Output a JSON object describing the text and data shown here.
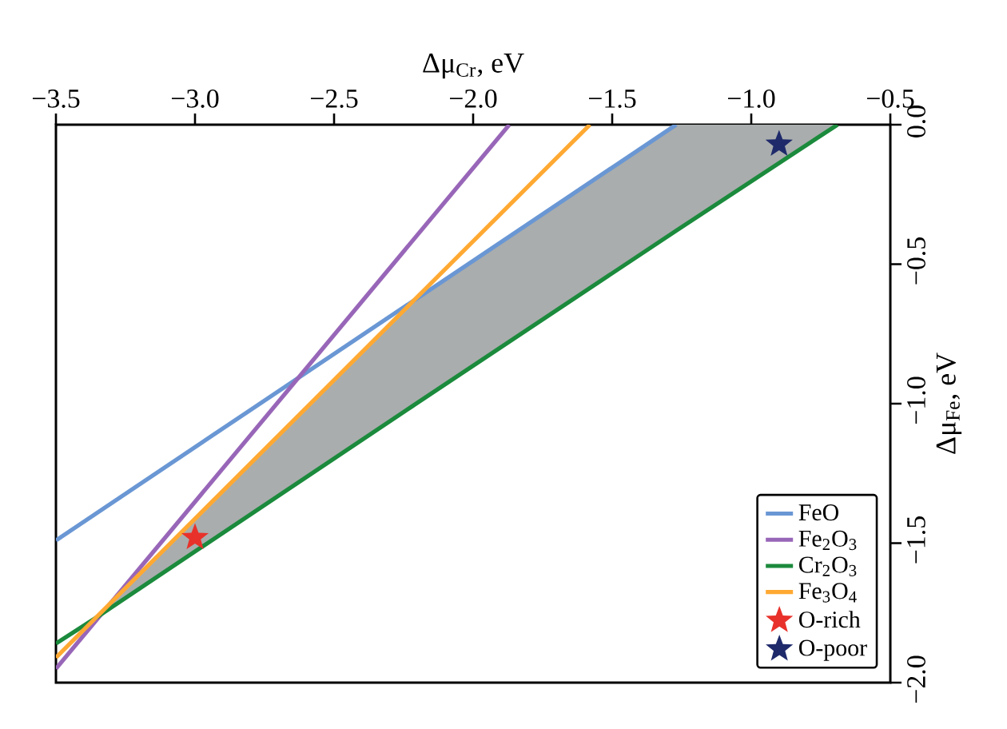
{
  "chart_data": {
    "type": "line",
    "xlabel": "Δμ$_{Cr}$, eV",
    "ylabel": "Δμ$_{Fe}$, eV",
    "xlim": [
      -3.5,
      -0.5
    ],
    "ylim": [
      -2.0,
      0.0
    ],
    "xticks": [
      {
        "value": -3.5,
        "label": "−3.5"
      },
      {
        "value": -3.0,
        "label": "−3.0"
      },
      {
        "value": -2.5,
        "label": "−2.5"
      },
      {
        "value": -2.0,
        "label": "−2.0"
      },
      {
        "value": -1.5,
        "label": "−1.5"
      },
      {
        "value": -1.0,
        "label": "−1.0"
      },
      {
        "value": -0.5,
        "label": "−0.5"
      }
    ],
    "yticks": [
      {
        "value": -2.0,
        "label": "−2.0"
      },
      {
        "value": -1.5,
        "label": "−1.5"
      },
      {
        "value": -1.0,
        "label": "−1.0"
      },
      {
        "value": -0.5,
        "label": "−0.5"
      },
      {
        "value": 0.0,
        "label": "0.0"
      }
    ],
    "grid": false,
    "legend": "bottom right",
    "series": [
      {
        "name": "FeO",
        "color": "#6a97d4",
        "x": [
          -3.5,
          -1.27
        ],
        "values": [
          -1.49,
          0.0
        ]
      },
      {
        "name": "Fe$_{2}$O$_{3}$",
        "color": "#9866b8",
        "x": [
          -3.5,
          -1.87
        ],
        "values": [
          -1.95,
          0.0
        ]
      },
      {
        "name": "Cr$_{2}$O$_{3}$",
        "color": "#1b8a3c",
        "x": [
          -3.5,
          -3.36,
          -2.22,
          -1.27,
          -0.69
        ],
        "values": [
          -1.86,
          -1.77,
          -1.01,
          -0.38,
          0.0
        ],
        "lower": [
          null,
          -1.77,
          -1.01,
          -0.38,
          0.0
        ],
        "upper": [
          null,
          -1.77,
          -0.63,
          0.0,
          0.0
        ]
      },
      {
        "name": "Fe$_{3}$O$_{4}$",
        "color": "#ffa933",
        "x": [
          -3.5,
          -1.58
        ],
        "values": [
          -1.91,
          0.0
        ]
      },
      {
        "name": "O-rich",
        "type": "scatter",
        "marker": "star",
        "color": "#e8312a",
        "x": [
          -3.0
        ],
        "values": [
          -1.48
        ]
      },
      {
        "name": "O-poor",
        "type": "scatter",
        "marker": "star",
        "color": "#1f2a6b",
        "x": [
          -0.9
        ],
        "values": [
          -0.07
        ]
      }
    ]
  }
}
